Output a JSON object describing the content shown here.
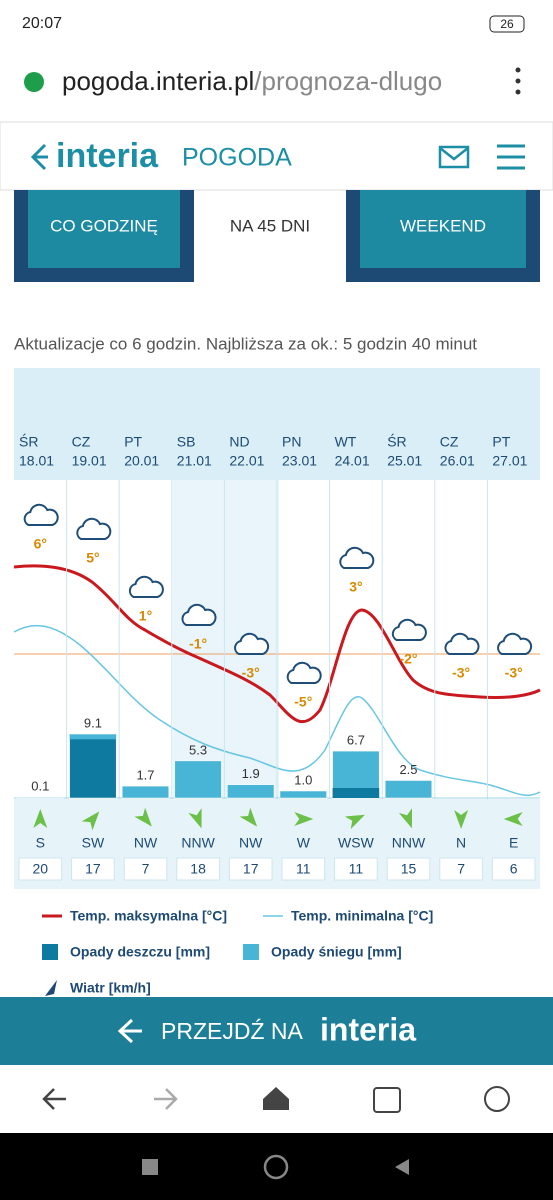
{
  "status_bar": {
    "time": "20:07",
    "battery": "26"
  },
  "url_bar": {
    "domain": "pogoda.interia.pl",
    "path": "/prognoza-dlugo"
  },
  "header": {
    "logo": "interia",
    "section": "POGODA"
  },
  "tabs": [
    "CO GODZINĘ",
    "NA 45 DNI",
    "WEEKEND"
  ],
  "update_note": "Aktualizacje co 6 godzin. Najbliższa za ok.: 5 godzin 40 minut",
  "days": [
    {
      "day": "ŚR",
      "date": "18.01",
      "temp": "6°",
      "precip": "0.1",
      "wind_dir": "S",
      "wind_speed": 20
    },
    {
      "day": "CZ",
      "date": "19.01",
      "temp": "5°",
      "precip": "9.1",
      "wind_dir": "SW",
      "wind_speed": 17
    },
    {
      "day": "PT",
      "date": "20.01",
      "temp": "1°",
      "precip": "1.7",
      "wind_dir": "NW",
      "wind_speed": 7
    },
    {
      "day": "SB",
      "date": "21.01",
      "temp": "-1°",
      "precip": "5.3",
      "wind_dir": "NNW",
      "wind_speed": 18
    },
    {
      "day": "ND",
      "date": "22.01",
      "temp": "-3°",
      "precip": "1.9",
      "wind_dir": "NW",
      "wind_speed": 17
    },
    {
      "day": "PN",
      "date": "23.01",
      "temp": "-5°",
      "precip": "1.0",
      "wind_dir": "W",
      "wind_speed": 11
    },
    {
      "day": "WT",
      "date": "24.01",
      "temp": "3°",
      "precip": "6.7",
      "wind_dir": "WSW",
      "wind_speed": 11
    },
    {
      "day": "ŚR",
      "date": "25.01",
      "temp": "-2°",
      "precip": "2.5",
      "wind_dir": "NNW",
      "wind_speed": 15
    },
    {
      "day": "CZ",
      "date": "26.01",
      "temp": "-3°",
      "precip": "",
      "wind_dir": "N",
      "wind_speed": 7
    },
    {
      "day": "PT",
      "date": "27.01",
      "temp": "-3°",
      "precip": "",
      "wind_dir": "E",
      "wind_speed": 6
    }
  ],
  "legend": [
    "Temp. maksymalna [°C]",
    "Temp. minimalna [°C]",
    "Opady deszczu [mm]",
    "Opady śniegu [mm]",
    "Wiatr [km/h]"
  ],
  "banner": {
    "text": "PRZEJDŹ NA",
    "logo": "interia"
  }
}
